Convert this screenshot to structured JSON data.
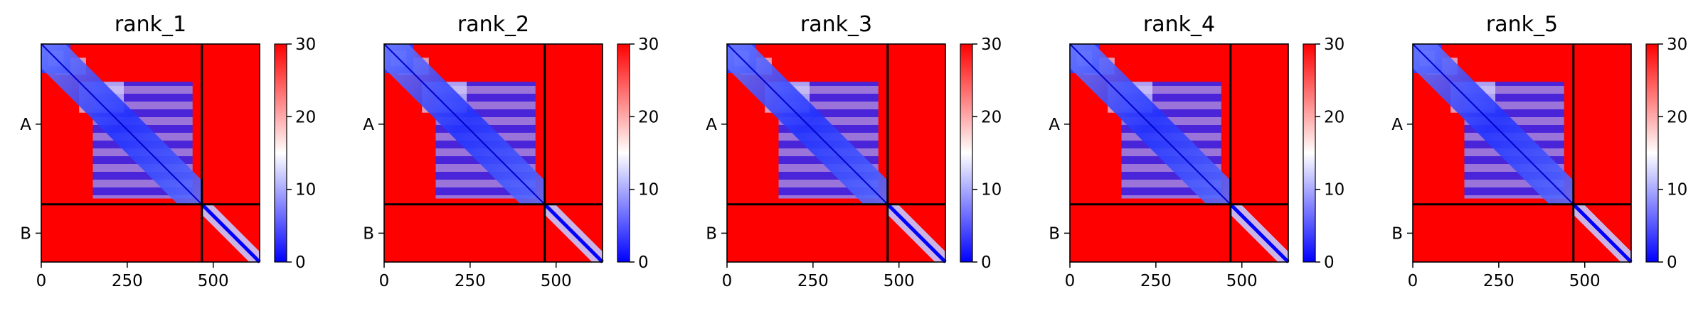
{
  "chart_data": [
    {
      "type": "heatmap",
      "title": "rank_1",
      "xlim": [
        0,
        635
      ],
      "chain_boundary": 467,
      "y_chains": [
        "A",
        "B"
      ],
      "x_ticks": [
        "0",
        "250",
        "500"
      ],
      "x_tick_values": [
        0,
        250,
        500
      ],
      "colorbar": {
        "min": 0,
        "max": 30,
        "ticks": [
          "0",
          "10",
          "20",
          "30"
        ],
        "colors": [
          "#0000ff",
          "#ffffff",
          "#ff0000"
        ]
      },
      "cross_chain_pae": "high"
    },
    {
      "type": "heatmap",
      "title": "rank_2",
      "xlim": [
        0,
        635
      ],
      "chain_boundary": 467,
      "y_chains": [
        "A",
        "B"
      ],
      "x_ticks": [
        "0",
        "250",
        "500"
      ],
      "x_tick_values": [
        0,
        250,
        500
      ],
      "colorbar": {
        "min": 0,
        "max": 30,
        "ticks": [
          "0",
          "10",
          "20",
          "30"
        ],
        "colors": [
          "#0000ff",
          "#ffffff",
          "#ff0000"
        ]
      },
      "cross_chain_pae": "high"
    },
    {
      "type": "heatmap",
      "title": "rank_3",
      "xlim": [
        0,
        635
      ],
      "chain_boundary": 467,
      "y_chains": [
        "A",
        "B"
      ],
      "x_ticks": [
        "0",
        "250",
        "500"
      ],
      "x_tick_values": [
        0,
        250,
        500
      ],
      "colorbar": {
        "min": 0,
        "max": 30,
        "ticks": [
          "0",
          "10",
          "20",
          "30"
        ],
        "colors": [
          "#0000ff",
          "#ffffff",
          "#ff0000"
        ]
      },
      "cross_chain_pae": "high"
    },
    {
      "type": "heatmap",
      "title": "rank_4",
      "xlim": [
        0,
        635
      ],
      "chain_boundary": 467,
      "y_chains": [
        "A",
        "B"
      ],
      "x_ticks": [
        "0",
        "250",
        "500"
      ],
      "x_tick_values": [
        0,
        250,
        500
      ],
      "colorbar": {
        "min": 0,
        "max": 30,
        "ticks": [
          "0",
          "10",
          "20",
          "30"
        ],
        "colors": [
          "#0000ff",
          "#ffffff",
          "#ff0000"
        ]
      },
      "cross_chain_pae": "high"
    },
    {
      "type": "heatmap",
      "title": "rank_5",
      "xlim": [
        0,
        635
      ],
      "chain_boundary": 467,
      "y_chains": [
        "A",
        "B"
      ],
      "x_ticks": [
        "0",
        "250",
        "500"
      ],
      "x_tick_values": [
        0,
        250,
        500
      ],
      "colorbar": {
        "min": 0,
        "max": 30,
        "ticks": [
          "0",
          "10",
          "20",
          "30"
        ],
        "colors": [
          "#0000ff",
          "#ffffff",
          "#ff0000"
        ]
      },
      "cross_chain_pae": "high"
    }
  ]
}
